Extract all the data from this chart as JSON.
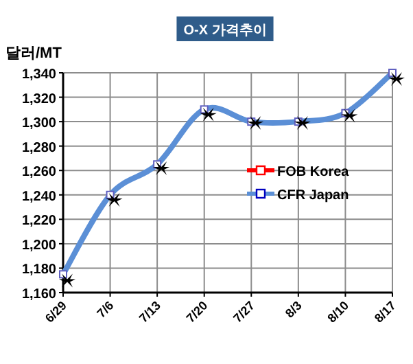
{
  "chart_data": {
    "type": "line",
    "title": "O-X 가격추이",
    "ylabel": "달러/MT",
    "categories": [
      "6/29",
      "7/6",
      "7/13",
      "7/20",
      "7/27",
      "8/3",
      "8/10",
      "8/17"
    ],
    "series": [
      {
        "name": "FOB Korea",
        "color": "#ff0000",
        "values": [
          null,
          null,
          null,
          null,
          null,
          null,
          null,
          null
        ]
      },
      {
        "name": "CFR Japan",
        "color": "#5b8fd6",
        "values": [
          1175,
          1240,
          1265,
          1310,
          1300,
          1300,
          1307,
          1340
        ]
      },
      {
        "type": "scatter",
        "marker": "cross",
        "color": "#000000",
        "values": [
          1171,
          1237,
          1263,
          1307,
          1300,
          1300,
          1306,
          1336
        ]
      }
    ],
    "ylim": [
      1160,
      1340
    ],
    "yticks": [
      {
        "value": 1160,
        "label": "1,160"
      },
      {
        "value": 1180,
        "label": "1,180"
      },
      {
        "value": 1200,
        "label": "1,200"
      },
      {
        "value": 1220,
        "label": "1,220"
      },
      {
        "value": 1240,
        "label": "1,240"
      },
      {
        "value": 1260,
        "label": "1,260"
      },
      {
        "value": 1280,
        "label": "1,280"
      },
      {
        "value": 1300,
        "label": "1,300"
      },
      {
        "value": 1320,
        "label": "1,320"
      },
      {
        "value": 1340,
        "label": "1,340"
      }
    ],
    "grid": true,
    "legend": "right",
    "marker": "square"
  }
}
